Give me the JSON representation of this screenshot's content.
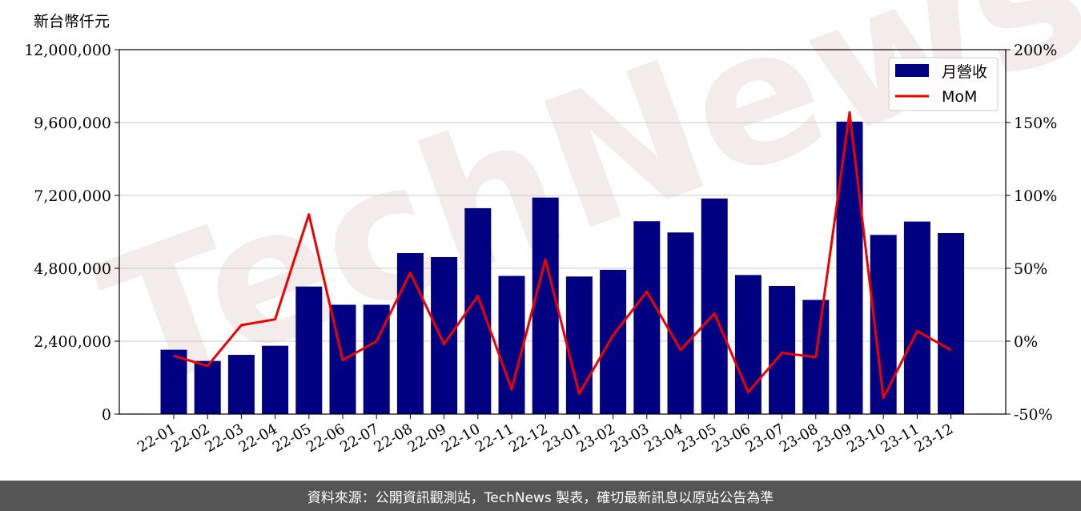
{
  "chart_data": {
    "type": "bar",
    "y_unit_label": "新台幣仟元",
    "categories": [
      "22-01",
      "22-02",
      "22-03",
      "22-04",
      "22-05",
      "22-06",
      "22-07",
      "22-08",
      "22-09",
      "22-10",
      "22-11",
      "22-12",
      "23-01",
      "23-02",
      "23-03",
      "23-04",
      "23-05",
      "23-06",
      "23-07",
      "23-08",
      "23-09",
      "23-10",
      "23-11",
      "23-12"
    ],
    "series": [
      {
        "name": "月營收",
        "axis": "left",
        "type": "bar",
        "color": "#000080",
        "values": [
          2120000,
          1750000,
          1950000,
          2250000,
          4200000,
          3600000,
          3600000,
          5300000,
          5170000,
          6780000,
          4550000,
          7130000,
          4530000,
          4750000,
          6350000,
          5980000,
          7100000,
          4580000,
          4220000,
          3760000,
          9630000,
          5900000,
          6340000,
          5960000
        ]
      },
      {
        "name": "MoM",
        "axis": "right",
        "type": "line",
        "color": "#ee0000",
        "values": [
          -10,
          -17,
          11,
          15,
          87,
          -13,
          0,
          47,
          -2,
          31,
          -33,
          56,
          -36,
          4,
          34,
          -6,
          19,
          -35,
          -8,
          -11,
          157,
          -39,
          7,
          -6
        ]
      }
    ],
    "y_left": {
      "min": 0,
      "max": 12000000,
      "ticks": [
        "0",
        "2,400,000",
        "4,800,000",
        "7,200,000",
        "9,600,000",
        "12,000,000"
      ]
    },
    "y_right": {
      "min": -50,
      "max": 200,
      "ticks": [
        "-50%",
        "0%",
        "50%",
        "100%",
        "150%",
        "200%"
      ]
    },
    "grid": true,
    "legend_position": "top-right",
    "watermark": "TechNews"
  },
  "footer": {
    "text": "資料來源：公開資訊觀測站，TechNews 製表，確切最新訊息以原站公告為準"
  }
}
